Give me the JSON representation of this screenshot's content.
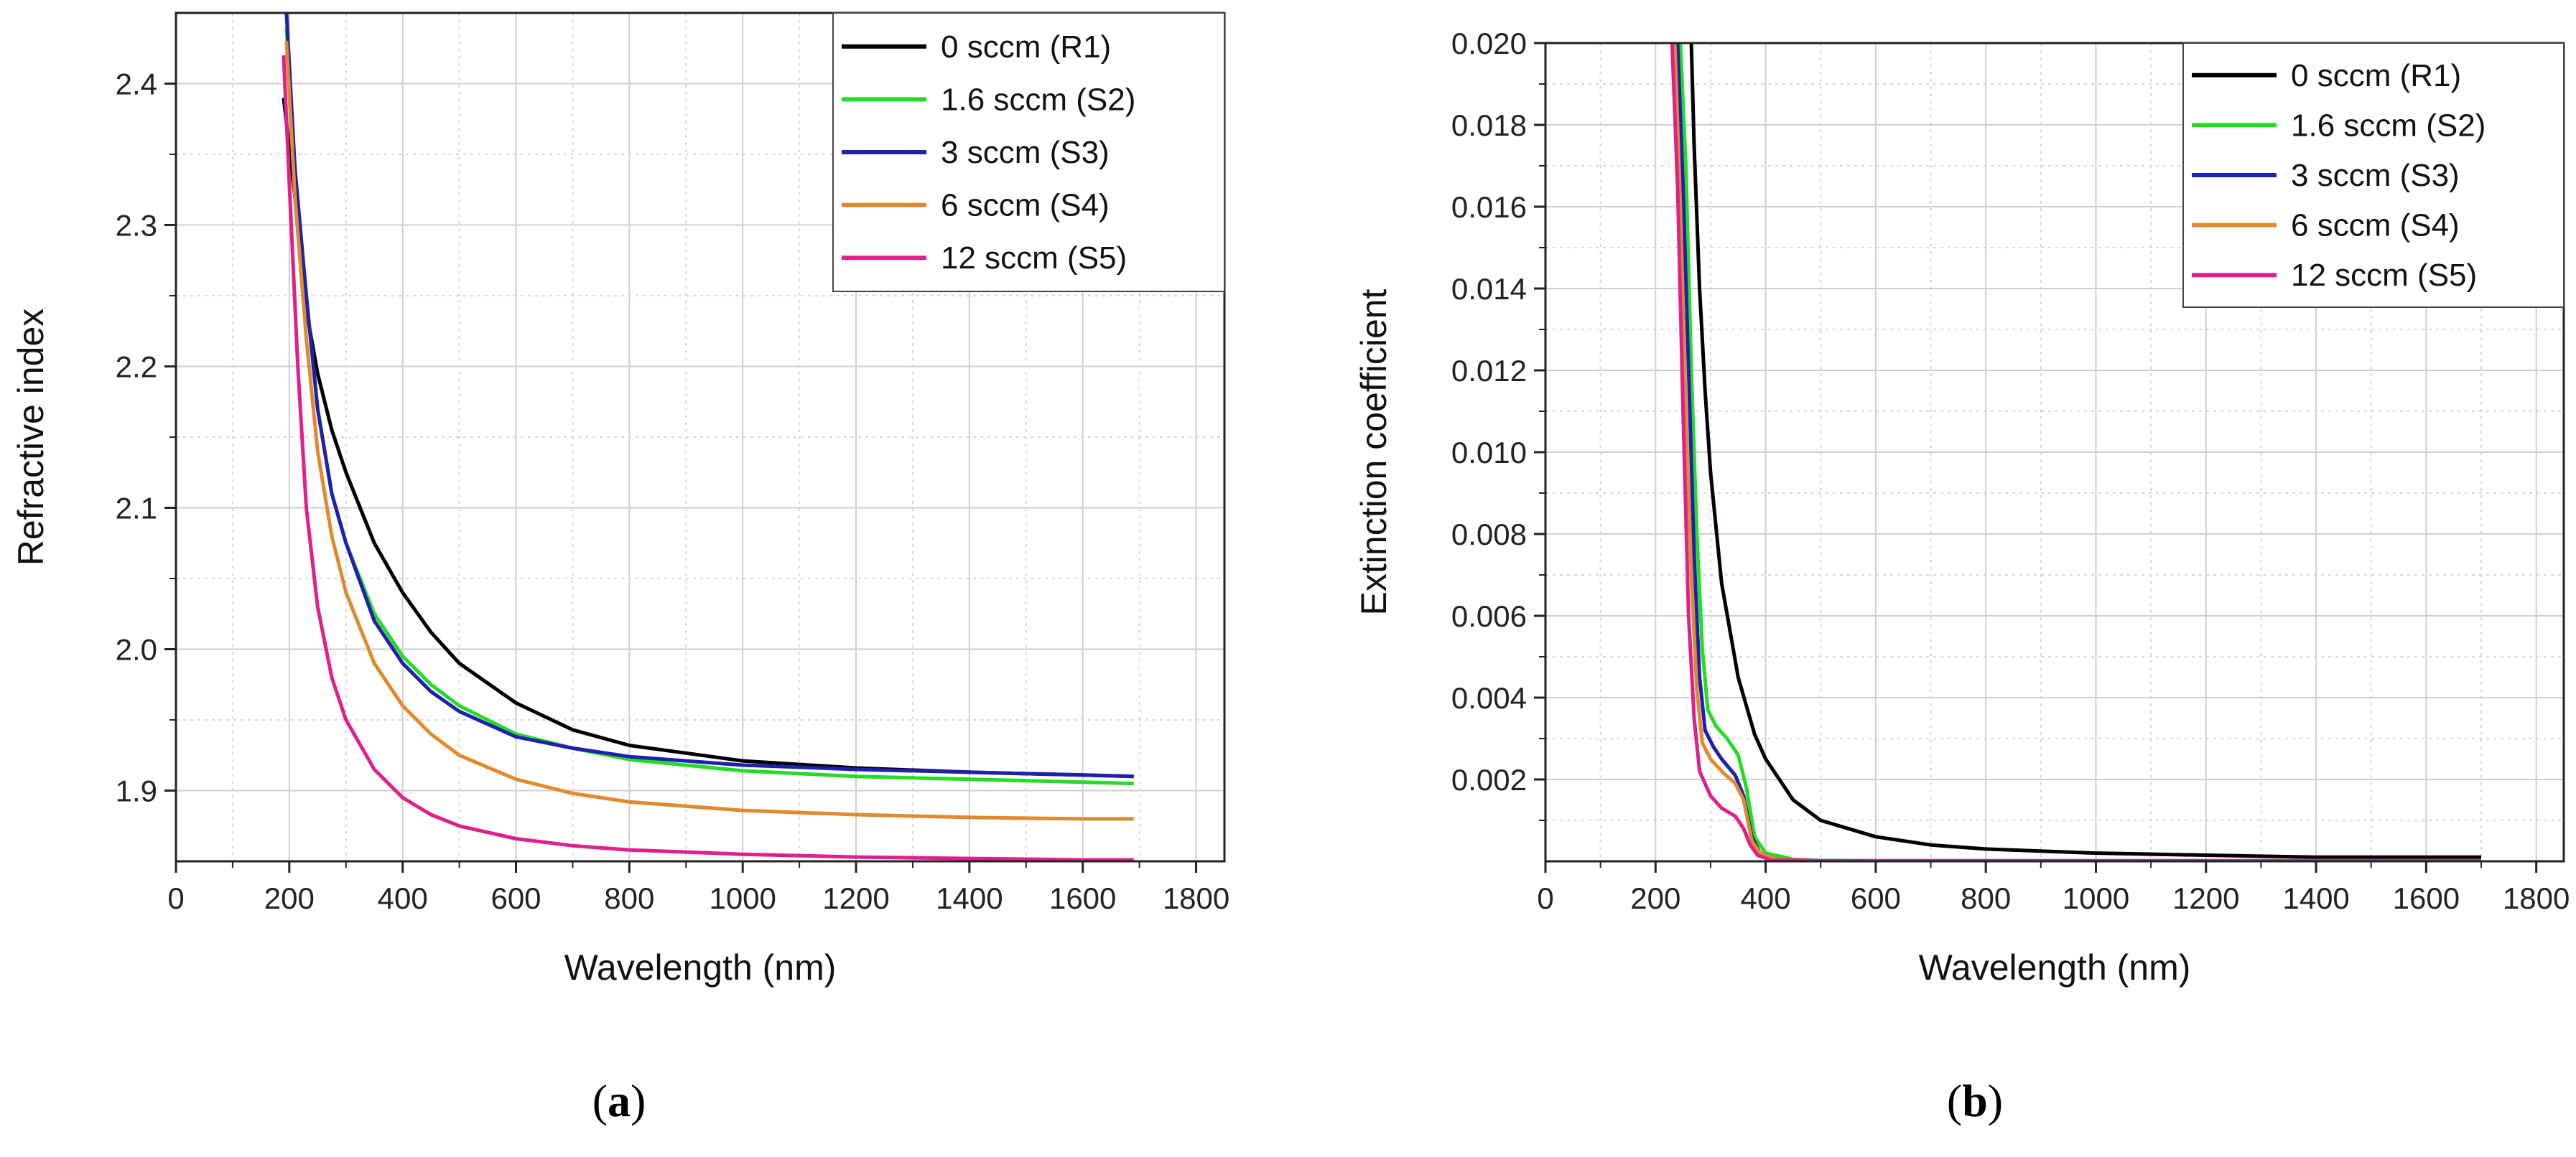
{
  "chart_data": [
    {
      "id": "a",
      "type": "line",
      "caption": "a",
      "xlabel": "Wavelength (nm)",
      "ylabel": "Refractive index",
      "xlim": [
        0,
        1850
      ],
      "ylim": [
        1.85,
        2.45
      ],
      "x_ticks": [
        0,
        200,
        400,
        600,
        800,
        1000,
        1200,
        1400,
        1600,
        1800
      ],
      "x_tick_labels": [
        "0",
        "200",
        "400",
        "600",
        "800",
        "1000",
        "1200",
        "1400",
        "1600",
        "1800"
      ],
      "y_ticks": [
        1.9,
        2.0,
        2.1,
        2.2,
        2.3,
        2.4
      ],
      "y_tick_labels": [
        "1.9",
        "2.0",
        "2.1",
        "2.2",
        "2.3",
        "2.4"
      ],
      "grid": true,
      "legend_position": "top-right",
      "series": [
        {
          "name": "0 sccm (R1)",
          "color": "#000000",
          "x": [
            190,
            210,
            230,
            250,
            275,
            300,
            350,
            400,
            450,
            500,
            600,
            700,
            800,
            1000,
            1200,
            1400,
            1600,
            1690
          ],
          "y": [
            2.39,
            2.32,
            2.24,
            2.195,
            2.155,
            2.125,
            2.075,
            2.04,
            2.012,
            1.99,
            1.962,
            1.943,
            1.932,
            1.921,
            1.916,
            1.913,
            1.911,
            1.91
          ]
        },
        {
          "name": "1.6 sccm (S2)",
          "color": "#22dd22",
          "x": [
            195,
            210,
            230,
            250,
            275,
            300,
            350,
            400,
            450,
            500,
            600,
            700,
            800,
            1000,
            1200,
            1400,
            1600,
            1690
          ],
          "y": [
            2.44,
            2.34,
            2.25,
            2.17,
            2.11,
            2.075,
            2.025,
            1.995,
            1.975,
            1.96,
            1.94,
            1.93,
            1.922,
            1.914,
            1.91,
            1.908,
            1.906,
            1.905
          ]
        },
        {
          "name": "3 sccm (S3)",
          "color": "#1f1fb0",
          "x": [
            195,
            210,
            230,
            250,
            275,
            300,
            350,
            400,
            450,
            500,
            600,
            700,
            800,
            1000,
            1200,
            1400,
            1600,
            1690
          ],
          "y": [
            2.45,
            2.34,
            2.25,
            2.17,
            2.11,
            2.075,
            2.02,
            1.99,
            1.97,
            1.956,
            1.938,
            1.93,
            1.924,
            1.918,
            1.915,
            1.913,
            1.911,
            1.91
          ]
        },
        {
          "name": "6 sccm (S4)",
          "color": "#e08a2e",
          "x": [
            195,
            210,
            230,
            250,
            275,
            300,
            350,
            400,
            450,
            500,
            600,
            700,
            800,
            1000,
            1200,
            1400,
            1600,
            1690
          ],
          "y": [
            2.43,
            2.32,
            2.22,
            2.14,
            2.08,
            2.04,
            1.99,
            1.96,
            1.94,
            1.925,
            1.908,
            1.898,
            1.892,
            1.886,
            1.883,
            1.881,
            1.88,
            1.88
          ]
        },
        {
          "name": "12 sccm (S5)",
          "color": "#e0208a",
          "x": [
            190,
            200,
            215,
            230,
            250,
            275,
            300,
            350,
            400,
            450,
            500,
            600,
            700,
            800,
            1000,
            1200,
            1400,
            1600,
            1690
          ],
          "y": [
            2.42,
            2.33,
            2.2,
            2.1,
            2.03,
            1.98,
            1.95,
            1.915,
            1.895,
            1.883,
            1.875,
            1.866,
            1.861,
            1.858,
            1.855,
            1.853,
            1.852,
            1.851,
            1.851
          ]
        }
      ]
    },
    {
      "id": "b",
      "type": "line",
      "caption": "b",
      "xlabel": "Wavelength (nm)",
      "ylabel": "Extinction coefficient",
      "xlim": [
        0,
        1850
      ],
      "ylim": [
        0,
        0.02
      ],
      "x_ticks": [
        0,
        200,
        400,
        600,
        800,
        1000,
        1200,
        1400,
        1600,
        1800
      ],
      "x_tick_labels": [
        "0",
        "200",
        "400",
        "600",
        "800",
        "1000",
        "1200",
        "1400",
        "1600",
        "1800"
      ],
      "y_ticks": [
        0.002,
        0.004,
        0.006,
        0.008,
        0.01,
        0.012,
        0.014,
        0.016,
        0.018,
        0.02
      ],
      "y_tick_labels": [
        "0.002",
        "0.004",
        "0.006",
        "0.008",
        "0.010",
        "0.012",
        "0.014",
        "0.016",
        "0.018",
        "0.020"
      ],
      "grid": true,
      "legend_position": "top-right",
      "series": [
        {
          "name": "0 sccm (R1)",
          "color": "#000000",
          "x": [
            265,
            270,
            280,
            290,
            300,
            320,
            350,
            380,
            400,
            450,
            500,
            600,
            700,
            800,
            1000,
            1200,
            1400,
            1700
          ],
          "y": [
            0.02,
            0.0175,
            0.014,
            0.0115,
            0.0095,
            0.0068,
            0.0045,
            0.0031,
            0.0025,
            0.0015,
            0.001,
            0.0006,
            0.0004,
            0.0003,
            0.0002,
            0.00015,
            0.0001,
            0.0001
          ]
        },
        {
          "name": "1.6 sccm (S2)",
          "color": "#22dd22",
          "x": [
            245,
            255,
            265,
            275,
            285,
            295,
            310,
            330,
            350,
            365,
            380,
            400,
            450,
            500,
            600,
            1000,
            1700
          ],
          "y": [
            0.02,
            0.017,
            0.012,
            0.008,
            0.0052,
            0.0037,
            0.0033,
            0.003,
            0.0026,
            0.0018,
            0.0006,
            0.0002,
            5e-05,
            2e-05,
            1e-05,
            1e-05,
            1e-05
          ]
        },
        {
          "name": "3 sccm (S3)",
          "color": "#1f1fb0",
          "x": [
            240,
            250,
            260,
            270,
            280,
            290,
            305,
            320,
            345,
            360,
            375,
            390,
            420,
            500,
            1000,
            1700
          ],
          "y": [
            0.02,
            0.0165,
            0.012,
            0.0075,
            0.0045,
            0.0032,
            0.0028,
            0.0025,
            0.0021,
            0.0016,
            0.0006,
            0.0002,
            5e-05,
            1e-05,
            1e-05,
            1e-05
          ]
        },
        {
          "name": "6 sccm (S4)",
          "color": "#e08a2e",
          "x": [
            235,
            245,
            255,
            265,
            275,
            285,
            300,
            320,
            345,
            360,
            375,
            390,
            420,
            500,
            1000,
            1700
          ],
          "y": [
            0.02,
            0.016,
            0.011,
            0.007,
            0.0042,
            0.0029,
            0.0025,
            0.0022,
            0.0019,
            0.0015,
            0.0005,
            0.0002,
            5e-05,
            1e-05,
            1e-05,
            1e-05
          ]
        },
        {
          "name": "12 sccm (S5)",
          "color": "#e0208a",
          "x": [
            230,
            240,
            250,
            260,
            270,
            280,
            300,
            320,
            345,
            360,
            372,
            385,
            410,
            500,
            1000,
            1700
          ],
          "y": [
            0.02,
            0.0165,
            0.011,
            0.006,
            0.0035,
            0.0022,
            0.0016,
            0.0013,
            0.0011,
            0.0008,
            0.0004,
            0.00015,
            3e-05,
            1e-05,
            1e-05,
            1e-05
          ]
        }
      ]
    }
  ]
}
